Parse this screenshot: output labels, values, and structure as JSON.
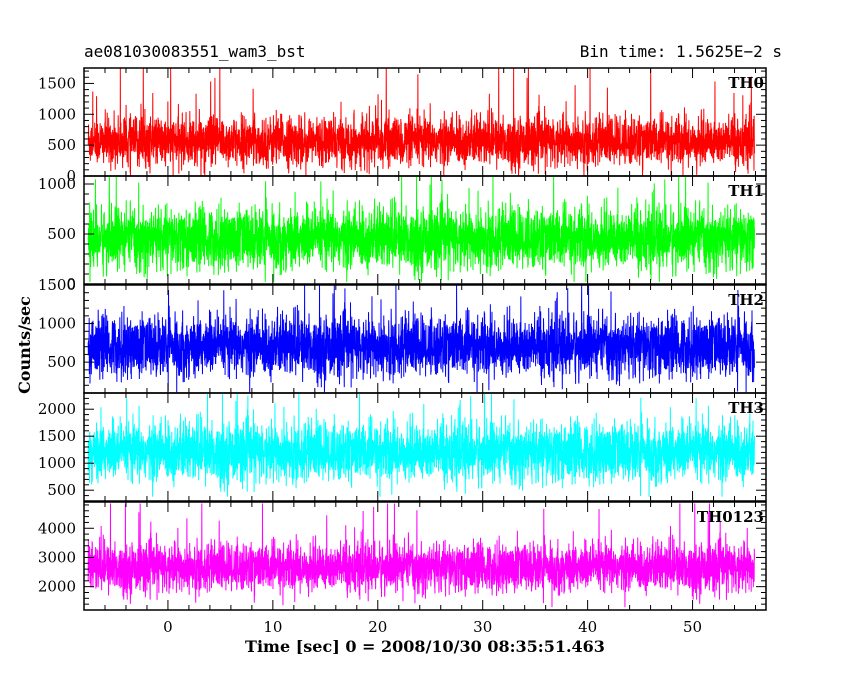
{
  "header": {
    "title_left": "ae081030083551_wam3_bst",
    "title_right": "Bin time: 1.5625E−2 s"
  },
  "chart_data": {
    "type": "line",
    "title": "ae081030083551_wam3_bst",
    "subtitle": "Bin time: 1.5625E−2 s",
    "xlabel": "Time [sec] 0 = 2008/10/30 08:35:51.463",
    "ylabel": "Counts/sec",
    "xlim": [
      -8,
      57
    ],
    "x_ticks": [
      0,
      10,
      20,
      30,
      40,
      50
    ],
    "x_range_data": [
      -7.6,
      55.9
    ],
    "bin_time_s": 0.015625,
    "grid": false,
    "panels": [
      {
        "name": "TH0",
        "color": "#ff0000",
        "ylim": [
          0,
          1750
        ],
        "y_ticks": [
          0,
          500,
          1000,
          1500
        ],
        "mean": 560,
        "min": 0,
        "max": 1750,
        "typical_range": [
          50,
          1200
        ]
      },
      {
        "name": "TH1",
        "color": "#00ff00",
        "ylim": [
          0,
          1080
        ],
        "y_ticks": [
          0,
          500,
          1000
        ],
        "mean": 450,
        "min": 20,
        "max": 1080,
        "typical_range": [
          80,
          980
        ]
      },
      {
        "name": "TH2",
        "color": "#0000ff",
        "ylim": [
          100,
          1500
        ],
        "y_ticks": [
          500,
          1000,
          1500
        ],
        "mean": 700,
        "min": 110,
        "max": 1500,
        "typical_range": [
          200,
          1350
        ]
      },
      {
        "name": "TH3",
        "color": "#00ffff",
        "ylim": [
          300,
          2300
        ],
        "y_ticks": [
          500,
          1000,
          1500,
          2000
        ],
        "mean": 1200,
        "min": 380,
        "max": 2300,
        "typical_range": [
          500,
          2100
        ]
      },
      {
        "name": "TH0123",
        "color": "#ff00ff",
        "ylim": [
          1200,
          4900
        ],
        "y_ticks": [
          2000,
          3000,
          4000
        ],
        "mean": 2650,
        "min": 1300,
        "max": 4850,
        "typical_range": [
          1600,
          4000
        ]
      }
    ]
  }
}
